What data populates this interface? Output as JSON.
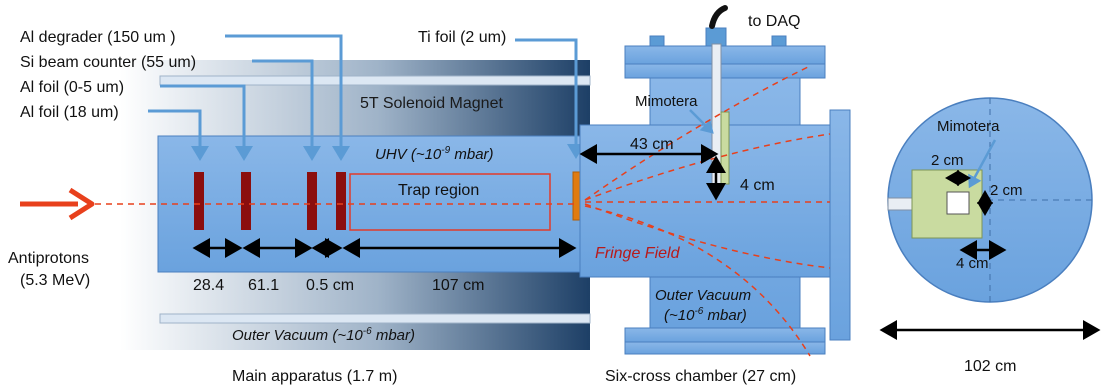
{
  "labels": {
    "al_degrader": "Al degrader (150 um )",
    "si_counter": "Si beam counter (55 um)",
    "al_foil_05": "Al foil (0-5 um)",
    "al_foil_18": "Al foil (18 um)",
    "ti_foil": "Ti foil (2 um)",
    "to_daq": "to DAQ",
    "solenoid": "5T Solenoid Magnet",
    "uhv_main": "UHV (~10",
    "uhv_exp": "-9",
    "uhv_tail": " mbar)",
    "trap_region": "Trap region",
    "antiprotons": "Antiprotons",
    "energy": "(5.3 MeV)",
    "d1": "28.4",
    "d2": "61.1",
    "d3": "0.5 cm",
    "d4": "107 cm",
    "outer_vac_main": "Outer Vacuum (~10",
    "outer_vac_exp": "-6",
    "outer_vac_tail": " mbar)",
    "main_caption": "Main apparatus (1.7 m)",
    "mimotera": "Mimotera",
    "dist_43": "43 cm",
    "dist_4": "4 cm",
    "fringe": "Fringe Field",
    "outer_vac2_l1": "Outer Vacuum",
    "outer_vac2_l2a": "(~10",
    "outer_vac2_exp": "-6",
    "outer_vac2_l2b": " mbar)",
    "six_cross_caption": "Six-cross chamber (27 cm)",
    "mimotera_right": "Mimotera",
    "r_2cm_top": "2 cm",
    "r_2cm_side": "2 cm",
    "r_4cm": "4 cm",
    "r_102": "102 cm"
  },
  "colors": {
    "apparatus_blue": "#5b9bd5",
    "pipe_blue": "#a9c8ee",
    "dark_red": "#8b0e0e",
    "beam_red": "#e8401c",
    "ti_orange": "#e07b10",
    "detector_green": "#c9dba0"
  }
}
